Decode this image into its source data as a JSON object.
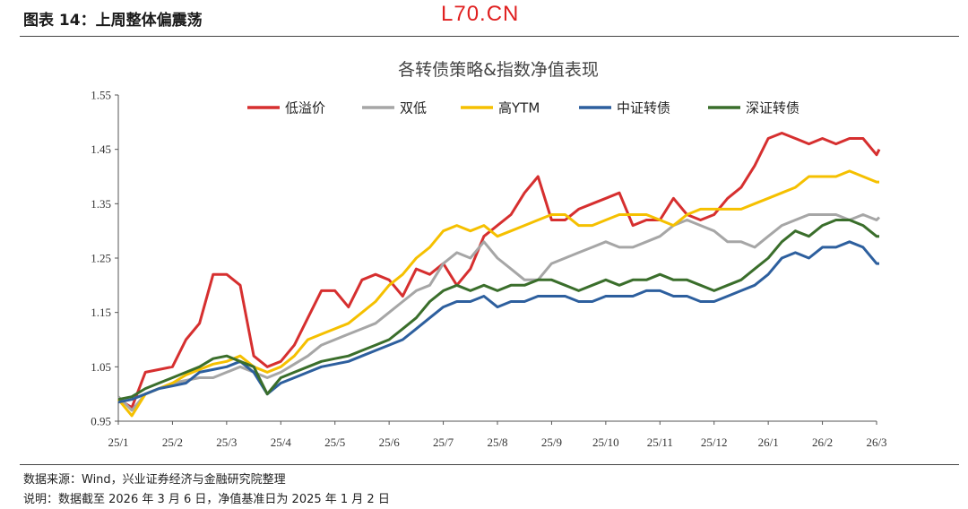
{
  "header": {
    "figure_title": "图表 14：上周整体偏震荡",
    "watermark": "L70.CN"
  },
  "footer": {
    "source": "数据来源：Wind，兴业证券经济与金融研究院整理",
    "note": "说明：数据截至 2026 年 3 月 6 日，净值基准日为 2025 年 1 月 2 日"
  },
  "chart_data": {
    "type": "line",
    "title": "各转债策略&指数净值表现",
    "xlabel": "",
    "ylabel": "",
    "ylim": [
      0.95,
      1.55
    ],
    "yticks": [
      "0.95",
      "1.05",
      "1.15",
      "1.25",
      "1.35",
      "1.45",
      "1.55"
    ],
    "xticks": [
      "25/1",
      "25/2",
      "25/3",
      "25/4",
      "25/5",
      "25/6",
      "25/7",
      "25/8",
      "25/9",
      "25/10",
      "25/11",
      "25/12",
      "26/1",
      "26/2",
      "26/3"
    ],
    "legend_position": "top",
    "grid": false,
    "x": [
      0,
      0.25,
      0.5,
      0.75,
      1,
      1.25,
      1.5,
      1.75,
      2,
      2.25,
      2.5,
      2.75,
      3,
      3.25,
      3.5,
      3.75,
      4,
      4.25,
      4.5,
      4.75,
      5,
      5.25,
      5.5,
      5.75,
      6,
      6.25,
      6.5,
      6.75,
      7,
      7.25,
      7.5,
      7.75,
      8,
      8.25,
      8.5,
      8.75,
      9,
      9.25,
      9.5,
      9.75,
      10,
      10.25,
      10.5,
      10.75,
      11,
      11.25,
      11.5,
      11.75,
      12,
      12.25,
      12.5,
      12.75,
      13,
      13.25,
      13.5,
      13.75,
      14,
      14.05
    ],
    "series": [
      {
        "name": "低溢价",
        "color": "#d62f2f",
        "values": [
          0.99,
          0.975,
          1.04,
          1.045,
          1.05,
          1.1,
          1.13,
          1.22,
          1.22,
          1.2,
          1.07,
          1.05,
          1.06,
          1.09,
          1.14,
          1.19,
          1.19,
          1.16,
          1.21,
          1.22,
          1.21,
          1.18,
          1.23,
          1.22,
          1.24,
          1.2,
          1.23,
          1.29,
          1.31,
          1.33,
          1.37,
          1.4,
          1.32,
          1.32,
          1.34,
          1.35,
          1.36,
          1.37,
          1.31,
          1.32,
          1.32,
          1.36,
          1.33,
          1.32,
          1.33,
          1.36,
          1.38,
          1.42,
          1.47,
          1.48,
          1.47,
          1.46,
          1.47,
          1.46,
          1.47,
          1.47,
          1.44,
          1.45
        ]
      },
      {
        "name": "双低",
        "color": "#a6a6a6",
        "values": [
          0.995,
          0.97,
          1.0,
          1.01,
          1.02,
          1.025,
          1.03,
          1.03,
          1.04,
          1.05,
          1.04,
          1.03,
          1.04,
          1.055,
          1.07,
          1.09,
          1.1,
          1.11,
          1.12,
          1.13,
          1.15,
          1.17,
          1.19,
          1.2,
          1.24,
          1.26,
          1.25,
          1.28,
          1.25,
          1.23,
          1.21,
          1.21,
          1.24,
          1.25,
          1.26,
          1.27,
          1.28,
          1.27,
          1.27,
          1.28,
          1.29,
          1.31,
          1.32,
          1.31,
          1.3,
          1.28,
          1.28,
          1.27,
          1.29,
          1.31,
          1.32,
          1.33,
          1.33,
          1.33,
          1.32,
          1.33,
          1.32,
          1.325
        ]
      },
      {
        "name": "高YTM",
        "color": "#f5c000",
        "values": [
          0.99,
          0.96,
          1.0,
          1.01,
          1.02,
          1.035,
          1.045,
          1.055,
          1.06,
          1.07,
          1.05,
          1.04,
          1.05,
          1.07,
          1.1,
          1.11,
          1.12,
          1.13,
          1.15,
          1.17,
          1.2,
          1.22,
          1.25,
          1.27,
          1.3,
          1.31,
          1.3,
          1.31,
          1.29,
          1.3,
          1.31,
          1.32,
          1.33,
          1.33,
          1.31,
          1.31,
          1.32,
          1.33,
          1.33,
          1.33,
          1.32,
          1.31,
          1.33,
          1.34,
          1.34,
          1.34,
          1.34,
          1.35,
          1.36,
          1.37,
          1.38,
          1.4,
          1.4,
          1.4,
          1.41,
          1.4,
          1.39,
          1.39
        ]
      },
      {
        "name": "中证转债",
        "color": "#2d5f9e",
        "values": [
          0.985,
          0.99,
          1.0,
          1.01,
          1.015,
          1.02,
          1.04,
          1.045,
          1.05,
          1.06,
          1.04,
          1.0,
          1.02,
          1.03,
          1.04,
          1.05,
          1.055,
          1.06,
          1.07,
          1.08,
          1.09,
          1.1,
          1.12,
          1.14,
          1.16,
          1.17,
          1.17,
          1.18,
          1.16,
          1.17,
          1.17,
          1.18,
          1.18,
          1.18,
          1.17,
          1.17,
          1.18,
          1.18,
          1.18,
          1.19,
          1.19,
          1.18,
          1.18,
          1.17,
          1.17,
          1.18,
          1.19,
          1.2,
          1.22,
          1.25,
          1.26,
          1.25,
          1.27,
          1.27,
          1.28,
          1.27,
          1.24,
          1.24
        ]
      },
      {
        "name": "深证转债",
        "color": "#3a6e2b",
        "values": [
          0.99,
          0.995,
          1.01,
          1.02,
          1.03,
          1.04,
          1.05,
          1.065,
          1.07,
          1.06,
          1.05,
          1.0,
          1.03,
          1.04,
          1.05,
          1.06,
          1.065,
          1.07,
          1.08,
          1.09,
          1.1,
          1.12,
          1.14,
          1.17,
          1.19,
          1.2,
          1.19,
          1.2,
          1.19,
          1.2,
          1.2,
          1.21,
          1.21,
          1.2,
          1.19,
          1.2,
          1.21,
          1.2,
          1.21,
          1.21,
          1.22,
          1.21,
          1.21,
          1.2,
          1.19,
          1.2,
          1.21,
          1.23,
          1.25,
          1.28,
          1.3,
          1.29,
          1.31,
          1.32,
          1.32,
          1.31,
          1.29,
          1.29
        ]
      }
    ]
  }
}
